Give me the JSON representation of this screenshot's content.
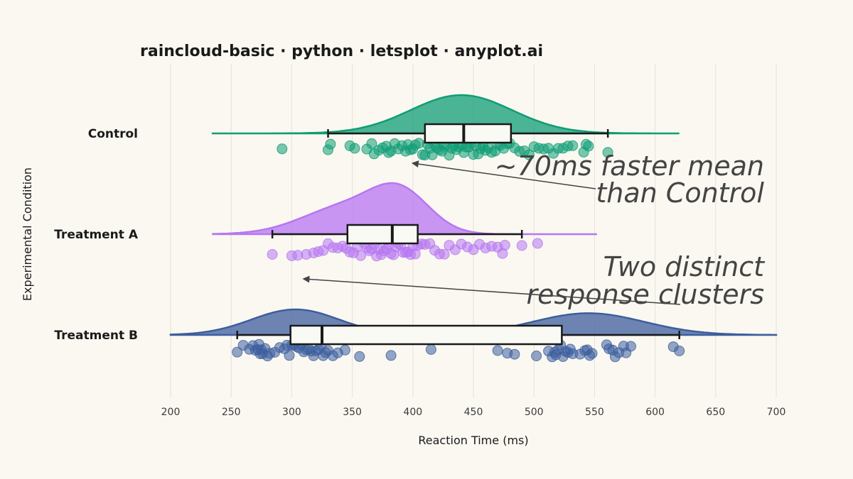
{
  "chart_data": {
    "type": "raincloud",
    "title": "raincloud-basic · python · letsplot · anyplot.ai",
    "xlabel": "Reaction Time (ms)",
    "ylabel": "Experimental Condition",
    "xlim": [
      200,
      700
    ],
    "xticks": [
      200,
      250,
      300,
      350,
      400,
      450,
      500,
      550,
      600,
      650,
      700
    ],
    "grid": true,
    "orientation": "horizontal",
    "categories": [
      "Control",
      "Treatment A",
      "Treatment B"
    ],
    "series": [
      {
        "name": "Control",
        "color": "#0F9D74",
        "box": {
          "whisker_low": 330,
          "q1": 410,
          "median": 442,
          "q3": 481,
          "whisker_high": 561
        },
        "density_range": [
          234,
          620
        ],
        "density_modes": [
          {
            "center": 440,
            "sd": 42,
            "weight": 1
          }
        ],
        "points": [
          292,
          330,
          332,
          348,
          352,
          362,
          366,
          368,
          372,
          375,
          378,
          380,
          382,
          385,
          388,
          391,
          394,
          396,
          398,
          400,
          402,
          405,
          408,
          410,
          412,
          414,
          416,
          418,
          420,
          422,
          424,
          426,
          428,
          430,
          432,
          434,
          436,
          438,
          440,
          442,
          444,
          446,
          448,
          450,
          452,
          454,
          456,
          458,
          460,
          462,
          465,
          468,
          470,
          472,
          475,
          478,
          480,
          484,
          488,
          492,
          496,
          500,
          504,
          508,
          512,
          516,
          520,
          524,
          528,
          532,
          541,
          543,
          545,
          561
        ]
      },
      {
        "name": "Treatment A",
        "color": "#B776F2",
        "box": {
          "whisker_low": 284,
          "q1": 346,
          "median": 383,
          "q3": 404,
          "whisker_high": 490
        },
        "density_range": [
          235,
          552
        ],
        "density_modes": [
          {
            "center": 390,
            "sd": 24,
            "weight": 1
          },
          {
            "center": 345,
            "sd": 36,
            "weight": 0.75
          }
        ],
        "points": [
          284,
          300,
          305,
          312,
          318,
          322,
          326,
          330,
          334,
          338,
          342,
          345,
          348,
          351,
          354,
          357,
          360,
          362,
          364,
          366,
          368,
          370,
          372,
          374,
          376,
          378,
          380,
          382,
          384,
          386,
          388,
          390,
          392,
          394,
          396,
          398,
          400,
          402,
          404,
          407,
          410,
          414,
          418,
          422,
          426,
          430,
          435,
          440,
          445,
          450,
          455,
          460,
          465,
          470,
          474,
          476,
          490,
          503
        ]
      },
      {
        "name": "Treatment B",
        "color": "#3D5E9E",
        "box": {
          "whisker_low": 255,
          "q1": 299,
          "median": 325,
          "q3": 523,
          "whisker_high": 620
        },
        "density_range": [
          200,
          700
        ],
        "density_modes": [
          {
            "center": 303,
            "sd": 36,
            "weight": 1
          },
          {
            "center": 545,
            "sd": 46,
            "weight": 0.85
          }
        ],
        "points": [
          255,
          260,
          265,
          268,
          270,
          272,
          273,
          274,
          275,
          276,
          278,
          280,
          282,
          286,
          290,
          294,
          296,
          298,
          300,
          302,
          304,
          306,
          308,
          310,
          312,
          314,
          316,
          318,
          320,
          322,
          324,
          326,
          328,
          330,
          334,
          338,
          344,
          356,
          382,
          415,
          470,
          478,
          484,
          502,
          512,
          515,
          517,
          518,
          520,
          522,
          524,
          526,
          528,
          530,
          532,
          538,
          542,
          544,
          546,
          548,
          560,
          562,
          565,
          567,
          570,
          574,
          576,
          580,
          615,
          620
        ]
      }
    ],
    "annotations": [
      {
        "lines": [
          "~70ms faster mean",
          "than Control"
        ],
        "arrow_to": {
          "x": 400,
          "category": "Control",
          "offset": "below-rain"
        }
      },
      {
        "lines": [
          "Two distinct",
          "response clusters"
        ],
        "arrow_to": {
          "x": 310,
          "category": "Treatment B",
          "offset": "above"
        }
      }
    ]
  }
}
